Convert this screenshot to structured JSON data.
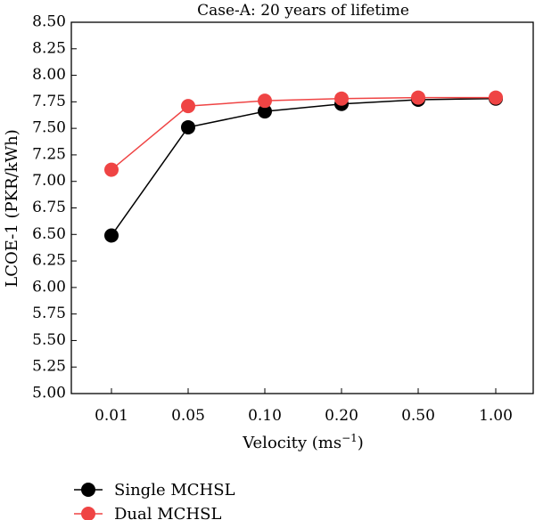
{
  "chart_data": {
    "type": "line",
    "title": "Case-A: 20 years of lifetime",
    "xlabel": "Velocity (ms",
    "xlabel_sup": "−1",
    "xlabel_end": ")",
    "ylabel": "LCOE-1 (PKR/kWh)",
    "categories": [
      "0.01",
      "0.05",
      "0.10",
      "0.20",
      "0.50",
      "1.00"
    ],
    "ylim": [
      5.0,
      8.5
    ],
    "yticks": [
      "5.00",
      "5.25",
      "5.50",
      "5.75",
      "6.00",
      "6.25",
      "6.50",
      "6.75",
      "7.00",
      "7.25",
      "7.50",
      "7.75",
      "8.00",
      "8.25",
      "8.50"
    ],
    "grid": false,
    "legend_position": "bottom-left",
    "series": [
      {
        "name": "Single MCHSL",
        "color": "#000000",
        "values": [
          6.49,
          7.51,
          7.66,
          7.73,
          7.77,
          7.78
        ]
      },
      {
        "name": "Dual MCHSL",
        "color": "#ef4444",
        "values": [
          7.11,
          7.71,
          7.76,
          7.78,
          7.79,
          7.79
        ]
      }
    ]
  }
}
